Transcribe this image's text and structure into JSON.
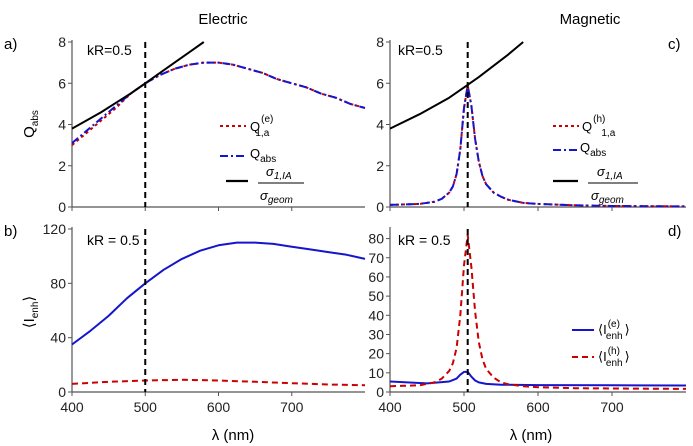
{
  "chart_data": [
    {
      "id": "a",
      "panel_label": "a)",
      "title": "Electric",
      "type": "line",
      "ylabel": "Q",
      "ylabel_sub": "abs",
      "xlim": [
        400,
        800
      ],
      "ylim": [
        0,
        8
      ],
      "yticks": [
        0,
        2,
        4,
        6,
        8
      ],
      "xticks": [
        400,
        500,
        600,
        700
      ],
      "annotation": "kR=0.5",
      "vline_x": 500,
      "series": [
        {
          "key": "q1a",
          "name": "Q",
          "sup": "(e)",
          "sub": "1,a",
          "color": "#cc0000",
          "dash": "3,3",
          "x": [
            400,
            420,
            440,
            460,
            480,
            500,
            520,
            540,
            560,
            580,
            600,
            620,
            640,
            660,
            680,
            700,
            720,
            740,
            760,
            780,
            800
          ],
          "y": [
            3.0,
            3.6,
            4.2,
            4.8,
            5.5,
            6.0,
            6.4,
            6.7,
            6.9,
            7.0,
            7.0,
            6.9,
            6.7,
            6.5,
            6.2,
            6.0,
            5.8,
            5.5,
            5.3,
            5.0,
            4.8
          ]
        },
        {
          "key": "qabs",
          "name": "Q",
          "sub": "abs",
          "color": "#1515cc",
          "dash": "8,3,2,3",
          "x": [
            400,
            420,
            440,
            460,
            480,
            500,
            520,
            540,
            560,
            580,
            600,
            620,
            640,
            660,
            680,
            700,
            720,
            740,
            760,
            780,
            800
          ],
          "y": [
            3.1,
            3.7,
            4.3,
            4.9,
            5.5,
            6.0,
            6.4,
            6.7,
            6.9,
            7.0,
            7.0,
            6.9,
            6.7,
            6.5,
            6.2,
            6.0,
            5.8,
            5.5,
            5.3,
            5.0,
            4.8
          ]
        },
        {
          "key": "sigma",
          "name": "σ1,IA / σgeom",
          "color": "#000000",
          "dash": "",
          "x": [
            400,
            420,
            440,
            460,
            480,
            500,
            520,
            540,
            560,
            580
          ],
          "y": [
            3.8,
            4.2,
            4.6,
            5.05,
            5.5,
            6.0,
            6.5,
            7.0,
            7.5,
            8.0
          ]
        }
      ]
    },
    {
      "id": "c",
      "panel_label": "c)",
      "title": "Magnetic",
      "type": "line",
      "xlim": [
        400,
        800
      ],
      "ylim": [
        0,
        8
      ],
      "yticks": [
        0,
        2,
        4,
        6,
        8
      ],
      "xticks": [
        400,
        500,
        600,
        700
      ],
      "annotation": "kR=0.5",
      "vline_x": 505,
      "series": [
        {
          "key": "q1a",
          "name": "Q",
          "sup": "(h)",
          "sub": "1,a",
          "color": "#cc0000",
          "dash": "3,3",
          "x": [
            400,
            440,
            460,
            470,
            480,
            485,
            490,
            495,
            500,
            505,
            510,
            515,
            520,
            525,
            530,
            540,
            550,
            560,
            580,
            600,
            650,
            700,
            800
          ],
          "y": [
            0.1,
            0.15,
            0.25,
            0.4,
            0.7,
            1.0,
            1.6,
            2.8,
            4.8,
            5.9,
            4.9,
            3.3,
            2.2,
            1.5,
            1.1,
            0.7,
            0.5,
            0.35,
            0.2,
            0.15,
            0.08,
            0.05,
            0.03
          ]
        },
        {
          "key": "qabs",
          "name": "Q",
          "sub": "abs",
          "color": "#1515cc",
          "dash": "8,3,2,3",
          "x": [
            400,
            440,
            460,
            470,
            480,
            485,
            490,
            495,
            500,
            505,
            510,
            515,
            520,
            525,
            530,
            540,
            550,
            560,
            580,
            600,
            650,
            700,
            800
          ],
          "y": [
            0.1,
            0.15,
            0.25,
            0.4,
            0.7,
            1.0,
            1.6,
            2.8,
            4.8,
            5.9,
            4.9,
            3.3,
            2.2,
            1.5,
            1.1,
            0.7,
            0.5,
            0.35,
            0.2,
            0.15,
            0.08,
            0.05,
            0.03
          ]
        },
        {
          "key": "sigma",
          "name": "σ1,IA / σgeom",
          "color": "#000000",
          "dash": "",
          "x": [
            400,
            440,
            480,
            500,
            520,
            560,
            580
          ],
          "y": [
            3.8,
            4.5,
            5.3,
            5.8,
            6.3,
            7.4,
            8.0
          ]
        }
      ]
    },
    {
      "id": "b",
      "panel_label": "b)",
      "type": "line",
      "ylabel": "⟨I",
      "ylabel_sub": "enh",
      "ylabel_end": "⟩",
      "xlabel": "λ (nm)",
      "xlim": [
        400,
        800
      ],
      "ylim": [
        0,
        120
      ],
      "yticks": [
        0,
        40,
        80,
        120
      ],
      "xticks": [
        400,
        500,
        600,
        700
      ],
      "annotation": "kR = 0.5",
      "vline_x": 500,
      "series": [
        {
          "key": "e",
          "color": "#1515cc",
          "dash": "",
          "x": [
            400,
            425,
            450,
            475,
            500,
            525,
            550,
            575,
            600,
            625,
            650,
            675,
            700,
            725,
            750,
            775,
            800
          ],
          "y": [
            35,
            45,
            56,
            69,
            80,
            90,
            98,
            104,
            108,
            110,
            110,
            109,
            107,
            105,
            103,
            101,
            98
          ]
        },
        {
          "key": "h",
          "color": "#cc0000",
          "dash": "6,4",
          "x": [
            400,
            450,
            500,
            550,
            600,
            650,
            700,
            750,
            800
          ],
          "y": [
            6,
            7.5,
            8.5,
            9,
            8.5,
            7.5,
            6.5,
            5.5,
            5
          ]
        }
      ]
    },
    {
      "id": "d",
      "panel_label": "d)",
      "type": "line",
      "xlabel": "λ (nm)",
      "xlim": [
        400,
        800
      ],
      "ylim": [
        0,
        85
      ],
      "yticks": [
        0,
        10,
        20,
        30,
        40,
        50,
        60,
        70,
        80
      ],
      "xticks": [
        400,
        500,
        600,
        700
      ],
      "annotation": "kR = 0.5",
      "vline_x": 505,
      "series": [
        {
          "key": "e",
          "name": "⟨I",
          "sup": "(e)",
          "sub": "enh",
          "end": "⟩",
          "color": "#1515cc",
          "dash": "",
          "x": [
            400,
            450,
            480,
            490,
            495,
            500,
            505,
            510,
            515,
            520,
            530,
            550,
            600,
            700,
            800
          ],
          "y": [
            5.5,
            4.5,
            5.5,
            7,
            9,
            10.5,
            10.5,
            8,
            6,
            5,
            4.2,
            3.8,
            3.6,
            3.5,
            3.4
          ]
        },
        {
          "key": "h",
          "name": "⟨I",
          "sup": "(h)",
          "sub": "enh",
          "end": "⟩",
          "color": "#cc0000",
          "dash": "6,4",
          "x": [
            400,
            440,
            460,
            470,
            480,
            485,
            490,
            495,
            500,
            505,
            510,
            515,
            520,
            525,
            530,
            540,
            550,
            560,
            580,
            600,
            650,
            700,
            800
          ],
          "y": [
            3,
            3.5,
            5,
            7,
            11,
            15,
            23,
            40,
            66,
            82,
            65,
            42,
            26,
            17,
            12,
            7.5,
            5,
            4,
            3,
            2.5,
            2,
            1.8,
            1.6
          ]
        }
      ]
    }
  ]
}
